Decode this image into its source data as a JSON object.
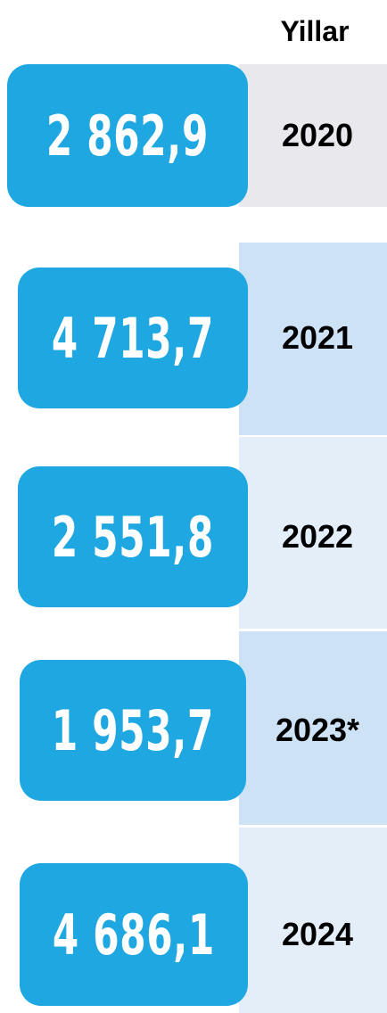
{
  "header": {
    "title": "Yillar"
  },
  "rows": [
    {
      "year": "2020",
      "value": "2 862,9"
    },
    {
      "year": "2021",
      "value": "4 713,7"
    },
    {
      "year": "2022",
      "value": "2 551,8"
    },
    {
      "year": "2023*",
      "value": "1 953,7"
    },
    {
      "year": "2024",
      "value": "4 686,1"
    }
  ]
}
